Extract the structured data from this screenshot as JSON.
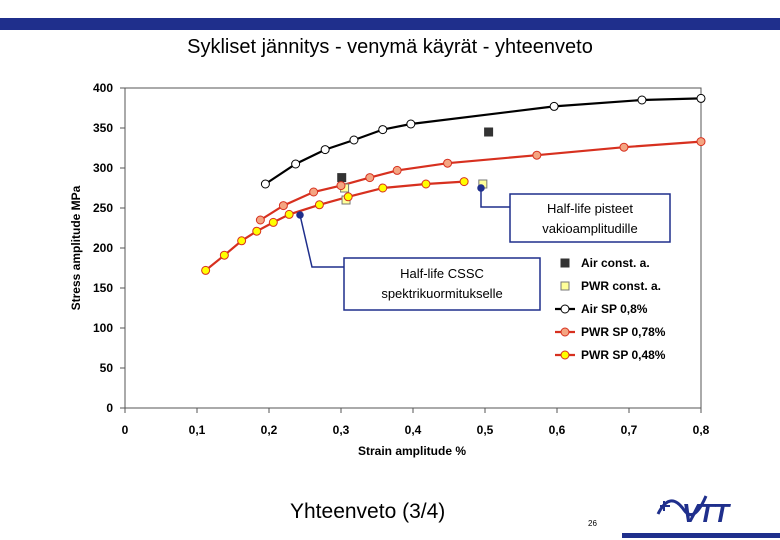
{
  "slide": {
    "title": "Sykliset jännitys - venymä käyrät - yhteenveto",
    "footer_title": "Yhteenveto (3/4)",
    "page_number": "26",
    "logo_text": "VTT",
    "brand_color": "#1f2f8c"
  },
  "chart_data": {
    "type": "scatter",
    "title": "",
    "xlabel": "Strain amplitude  %",
    "ylabel": "Stress amplitude  MPa",
    "xlim": [
      0,
      0.8
    ],
    "ylim": [
      0,
      400
    ],
    "x_ticks": [
      "0",
      "0,1",
      "0,2",
      "0,3",
      "0,4",
      "0,5",
      "0,6",
      "0,7",
      "0,8"
    ],
    "y_ticks": [
      "0",
      "50",
      "100",
      "150",
      "200",
      "250",
      "300",
      "350",
      "400"
    ],
    "grid": false,
    "legend_position": "right",
    "series": [
      {
        "name": "Air const. a.",
        "style": "square",
        "line": false,
        "fill": "#333333",
        "stroke": "#333333",
        "points": [
          [
            0.301,
            288
          ],
          [
            0.505,
            345
          ]
        ]
      },
      {
        "name": "PWR const. a.",
        "style": "square",
        "line": false,
        "fill": "#ffff99",
        "stroke": "#777777",
        "points": [
          [
            0.305,
            275
          ],
          [
            0.307,
            260
          ],
          [
            0.497,
            280
          ]
        ]
      },
      {
        "name": "Air SP 0,8%",
        "style": "circle",
        "line": true,
        "fill": "#ffffff",
        "stroke": "#000000",
        "points": [
          [
            0.195,
            280
          ],
          [
            0.237,
            305
          ],
          [
            0.278,
            323
          ],
          [
            0.318,
            335
          ],
          [
            0.358,
            348
          ],
          [
            0.397,
            355
          ],
          [
            0.596,
            377
          ],
          [
            0.718,
            385
          ],
          [
            0.8,
            387
          ]
        ]
      },
      {
        "name": "PWR SP 0,78%",
        "style": "circle",
        "line": true,
        "fill": "#f4a582",
        "stroke": "#d7301f",
        "points": [
          [
            0.188,
            235
          ],
          [
            0.22,
            253
          ],
          [
            0.262,
            270
          ],
          [
            0.3,
            278
          ],
          [
            0.34,
            288
          ],
          [
            0.378,
            297
          ],
          [
            0.448,
            306
          ],
          [
            0.572,
            316
          ],
          [
            0.693,
            326
          ],
          [
            0.8,
            333
          ]
        ]
      },
      {
        "name": "PWR SP 0,48%",
        "style": "circle",
        "line": true,
        "fill": "#ffff00",
        "stroke": "#d7301f",
        "points": [
          [
            0.112,
            172
          ],
          [
            0.138,
            191
          ],
          [
            0.162,
            209
          ],
          [
            0.183,
            221
          ],
          [
            0.206,
            232
          ],
          [
            0.228,
            242
          ],
          [
            0.27,
            254
          ],
          [
            0.31,
            264
          ],
          [
            0.358,
            275
          ],
          [
            0.418,
            280
          ],
          [
            0.471,
            283
          ]
        ]
      }
    ],
    "annotations": [
      {
        "text_lines": [
          "Half-life pisteet",
          "vakioamplitudille"
        ]
      },
      {
        "text_lines": [
          "Half-life CSSC",
          "spektrikuormitukselle"
        ]
      }
    ]
  }
}
